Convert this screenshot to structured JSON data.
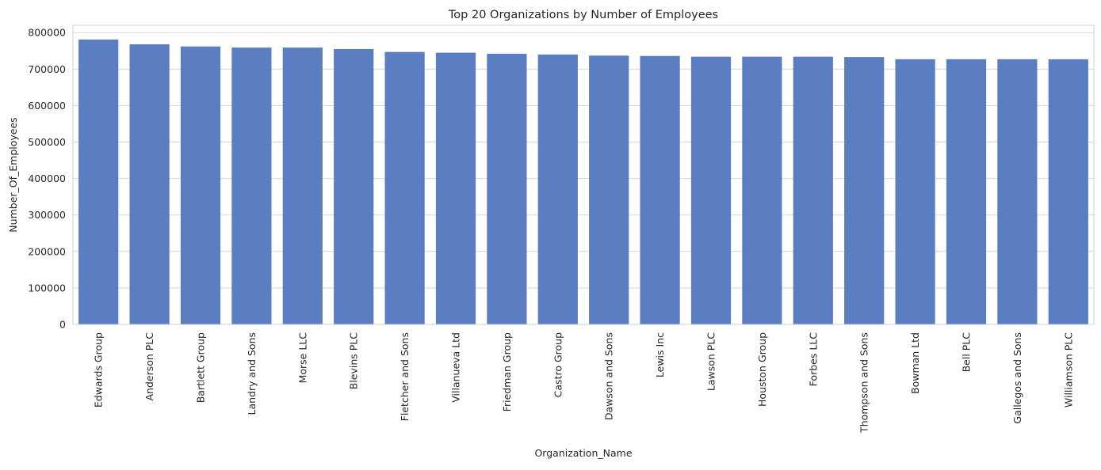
{
  "chart_data": {
    "type": "bar",
    "title": "Top 20 Organizations by Number of Employees",
    "xlabel": "Organization_Name",
    "ylabel": "Number_Of_Employees",
    "ylim": [
      0,
      820000
    ],
    "yticks": [
      0,
      100000,
      200000,
      300000,
      400000,
      500000,
      600000,
      700000,
      800000
    ],
    "grid": "y",
    "bar_color": "#5a7ec1",
    "categories": [
      "Edwards Group",
      "Anderson PLC",
      "Bartlett Group",
      "Landry and Sons",
      "Morse LLC",
      "Blevins PLC",
      "Fletcher and Sons",
      "Villanueva Ltd",
      "Friedman Group",
      "Castro Group",
      "Dawson and Sons",
      "Lewis Inc",
      "Lawson PLC",
      "Houston Group",
      "Forbes LLC",
      "Thompson and Sons",
      "Bowman Ltd",
      "Bell PLC",
      "Gallegos and Sons",
      "Williamson PLC"
    ],
    "values": [
      781000,
      768000,
      762000,
      759000,
      759000,
      755000,
      747000,
      745000,
      742000,
      740000,
      737000,
      736000,
      734000,
      734000,
      734000,
      733000,
      727000,
      727000,
      727000,
      727000
    ]
  }
}
